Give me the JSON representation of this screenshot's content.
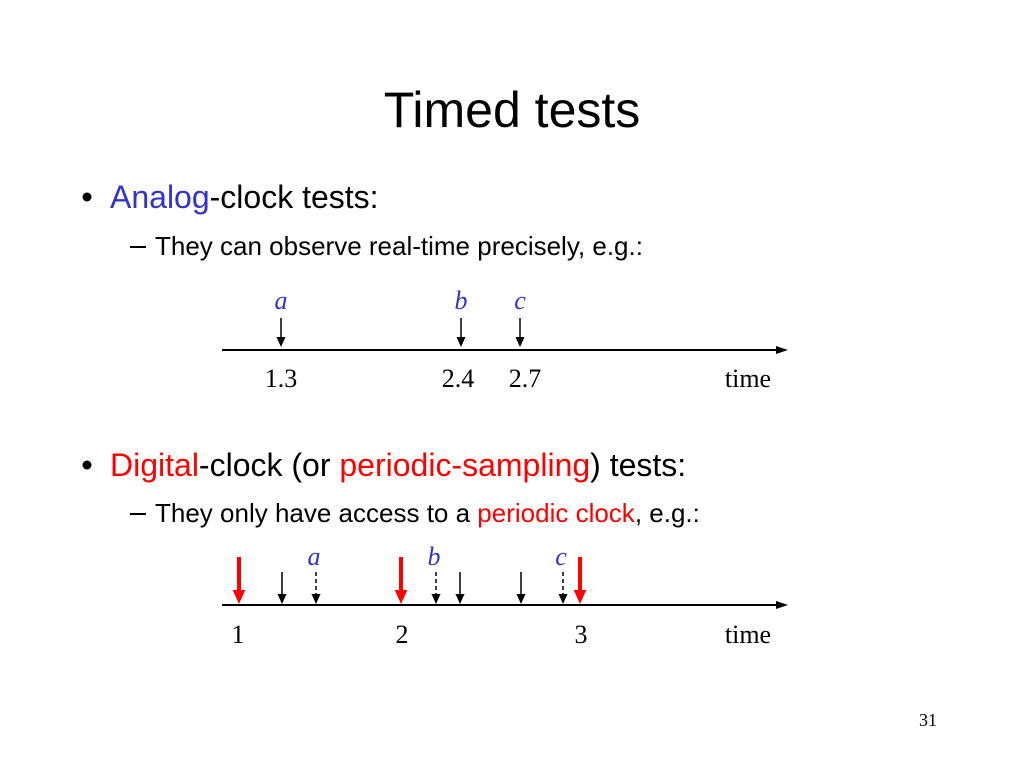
{
  "title": "Timed tests",
  "bullets": [
    {
      "parts": [
        "Analog",
        "-clock tests:"
      ],
      "sub": {
        "parts": [
          "They can observe real-time precisely, e.g.:"
        ]
      },
      "diagram": {
        "events": [
          "a",
          "b",
          "c"
        ],
        "tick_labels": [
          "1.3",
          "2.4",
          "2.7"
        ],
        "axis_label": "time"
      }
    },
    {
      "parts": [
        "Digital",
        "-clock (or ",
        "periodic-sampling",
        ") tests:"
      ],
      "sub": {
        "parts": [
          "They only have access to a ",
          "periodic clock",
          ", e.g.:"
        ]
      },
      "diagram": {
        "events": [
          "a",
          "b",
          "c"
        ],
        "tick_labels": [
          "1",
          "2",
          "3"
        ],
        "axis_label": "time"
      }
    }
  ],
  "page_number": "31"
}
